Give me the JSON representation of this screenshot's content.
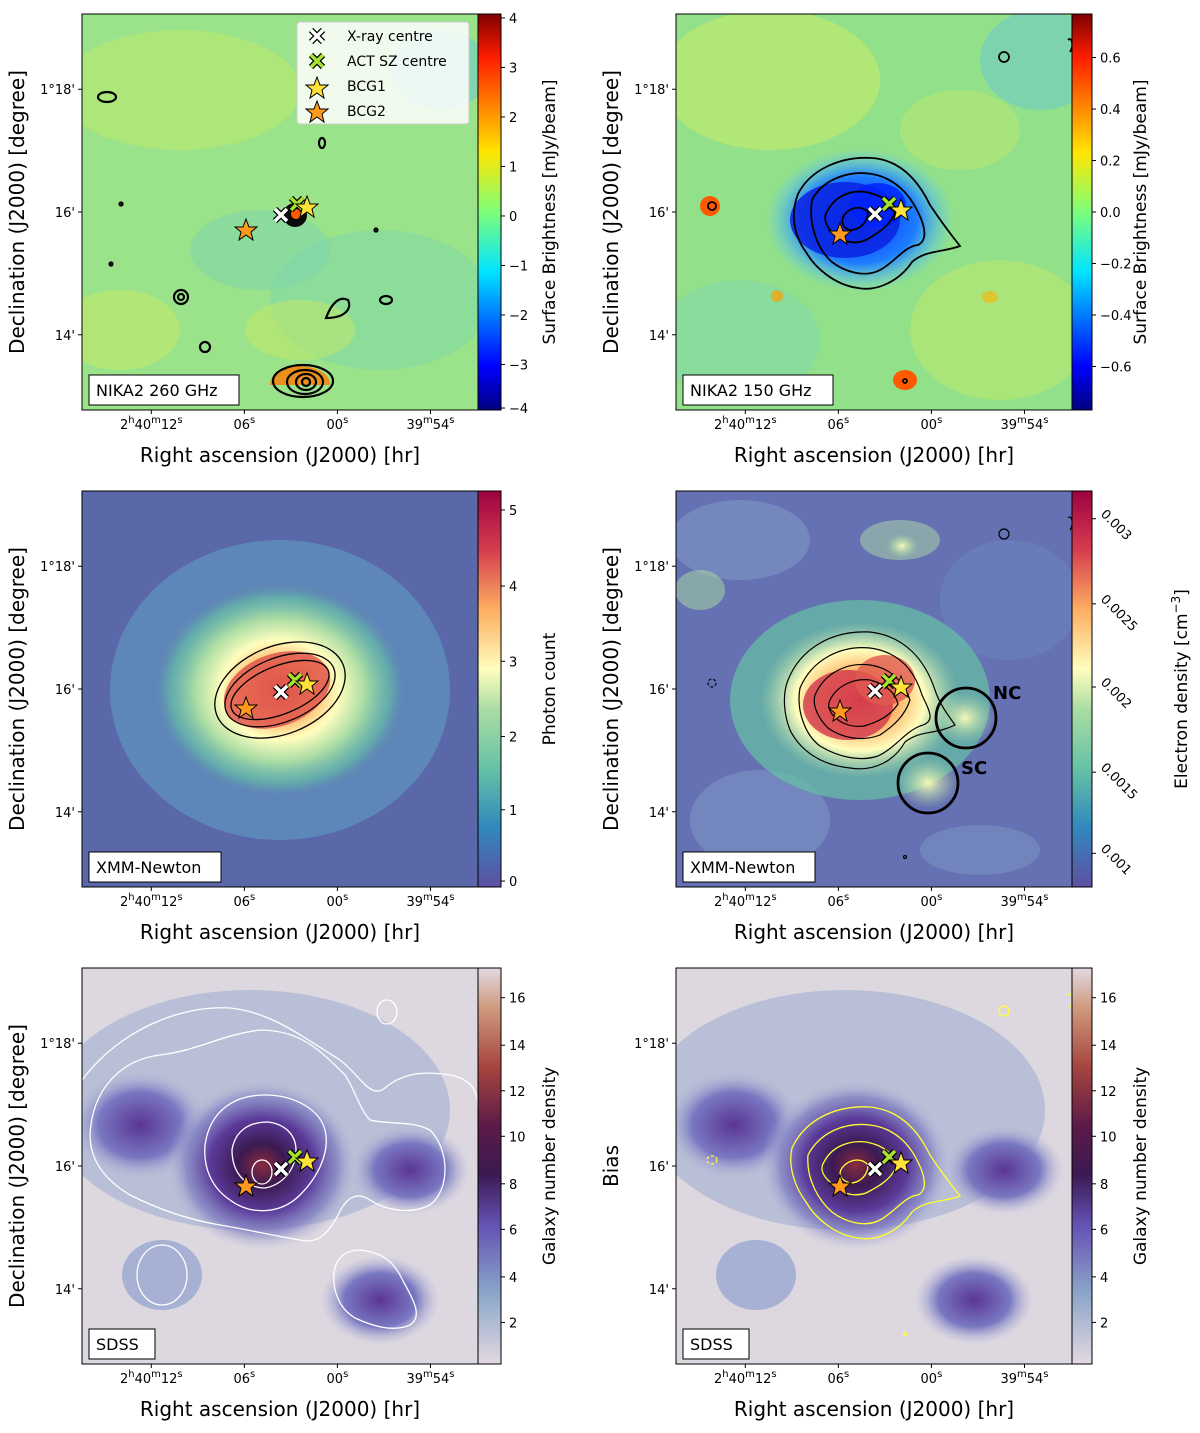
{
  "chart_data": [
    {
      "type": "heatmap",
      "panel_tag": "NIKA2 260 GHz",
      "xlabel": "Right ascension (J2000) [hr]",
      "ylabel": "Declination (J2000) [degree]",
      "xticks": [
        "2h40m12s",
        "06s",
        "00s",
        "39m54s"
      ],
      "yticks": [
        "1°18'",
        "16'",
        "14'"
      ],
      "colorbar": {
        "label": "Surface Brightness [mJy/beam]",
        "ticks": [
          "4",
          "3",
          "2",
          "1",
          "0",
          "−1",
          "−2",
          "−3",
          "−4"
        ],
        "range": [
          -4,
          4
        ],
        "colormap": "jet"
      },
      "legend": {
        "position": "top-right",
        "entries": [
          "X-ray centre",
          "ACT SZ centre",
          "BCG1",
          "BCG2"
        ]
      },
      "markers": {
        "x_ray_centre": {
          "color": "#ffffff"
        },
        "act_sz_centre": {
          "color": "#a6e22e"
        },
        "bcg1": {
          "color": "#ffe23a"
        },
        "bcg2": {
          "color": "#ff9a1f"
        }
      }
    },
    {
      "type": "heatmap",
      "panel_tag": "NIKA2 150 GHz",
      "xlabel": "Right ascension (J2000) [hr]",
      "ylabel": "Declination (J2000) [degree]",
      "xticks": [
        "2h40m12s",
        "06s",
        "00s",
        "39m54s"
      ],
      "yticks": [
        "1°18'",
        "16'",
        "14'"
      ],
      "colorbar": {
        "label": "Surface Brightness [mJy/beam]",
        "ticks": [
          "0.6",
          "0.4",
          "0.2",
          "0.0",
          "−0.2",
          "−0.4",
          "−0.6"
        ],
        "range": [
          -0.75,
          0.75
        ],
        "colormap": "jet"
      }
    },
    {
      "type": "heatmap",
      "panel_tag": "XMM-Newton",
      "xlabel": "Right ascension (J2000) [hr]",
      "ylabel": "Declination (J2000) [degree]",
      "xticks": [
        "2h40m12s",
        "06s",
        "00s",
        "39m54s"
      ],
      "yticks": [
        "1°18'",
        "16'",
        "14'"
      ],
      "colorbar": {
        "label": "Photon count",
        "ticks": [
          "5",
          "4",
          "3",
          "2",
          "1",
          "0"
        ],
        "range": [
          -0.2,
          5.3
        ],
        "colormap": "spectral"
      }
    },
    {
      "type": "heatmap",
      "panel_tag": "XMM-Newton",
      "xlabel": "Right ascension (J2000) [hr]",
      "ylabel": "Declination (J2000) [degree]",
      "xticks": [
        "2h40m12s",
        "06s",
        "00s",
        "39m54s"
      ],
      "yticks": [
        "1°18'",
        "16'",
        "14'"
      ],
      "colorbar": {
        "label": "Electron density [cm−3]",
        "ticks": [
          "0.003",
          "0.0025",
          "0.002",
          "0.0015",
          "0.001"
        ],
        "range": [
          0.0006,
          0.0031
        ],
        "colormap": "spectral"
      },
      "regions": [
        "NC",
        "SC"
      ]
    },
    {
      "type": "heatmap",
      "panel_tag": "SDSS",
      "xlabel": "Right ascension (J2000) [hr]",
      "ylabel": "Declination (J2000) [degree]",
      "xticks": [
        "2h40m12s",
        "06s",
        "00s",
        "39m54s"
      ],
      "yticks": [
        "1°18'",
        "16'",
        "14'"
      ],
      "colorbar": {
        "label": "Galaxy number density",
        "ticks": [
          "16",
          "14",
          "12",
          "10",
          "8",
          "6",
          "4",
          "2"
        ],
        "range": [
          0.3,
          17.2
        ],
        "colormap": "twilight"
      }
    },
    {
      "type": "heatmap",
      "panel_tag": "SDSS",
      "xlabel": "Right ascension (J2000) [hr]",
      "ylabel": "Bias",
      "xticks": [
        "2h40m12s",
        "06s",
        "00s",
        "39m54s"
      ],
      "yticks": [
        "1°18'",
        "16'",
        "14'"
      ],
      "colorbar": {
        "label": "Galaxy number density",
        "ticks": [
          "16",
          "14",
          "12",
          "10",
          "8",
          "6",
          "4",
          "2"
        ],
        "range": [
          0.3,
          17.2
        ],
        "colormap": "twilight"
      }
    }
  ]
}
